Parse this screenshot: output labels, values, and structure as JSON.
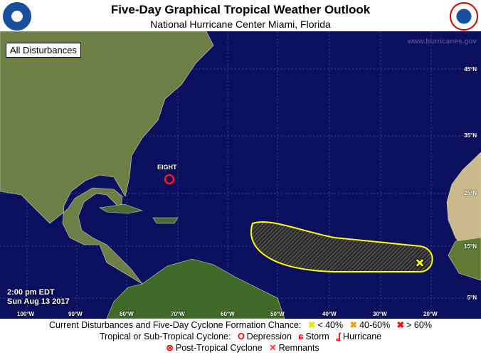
{
  "header": {
    "title": "Five-Day Graphical Tropical Weather Outlook",
    "subtitle": "National Hurricane Center  Miami, Florida",
    "logo_left": "NOAA",
    "logo_right": "National Weather Service"
  },
  "map": {
    "badge": "All Disturbances",
    "watermark": "www.hurricanes.gov",
    "timestamp_time": "2:00 pm EDT",
    "timestamp_date": "Sun Aug 13 2017",
    "lon_labels": [
      "100°W",
      "90°W",
      "80°W",
      "70°W",
      "60°W",
      "50°W",
      "40°W",
      "30°W",
      "20°W"
    ],
    "lat_labels": [
      "45°N",
      "35°N",
      "25°N",
      "15°N",
      "5°N"
    ],
    "systems": [
      {
        "name": "EIGHT",
        "type": "Depression"
      }
    ],
    "disturbances": [
      {
        "chance": "< 40%",
        "color": "#ffff00"
      }
    ]
  },
  "legend": {
    "line1": "Current Disturbances and Five-Day Cyclone Formation Chance:",
    "low": "< 40%",
    "mid": "40-60%",
    "high": "> 60%",
    "line2": "Tropical or Sub-Tropical Cyclone:",
    "depression": "Depression",
    "storm": "Storm",
    "hurricane": "Hurricane",
    "post": "Post-Tropical Cyclone",
    "remnants": "Remnants",
    "colors": {
      "low": "#ffff00",
      "mid": "#ff9900",
      "high": "#ff0000"
    }
  }
}
